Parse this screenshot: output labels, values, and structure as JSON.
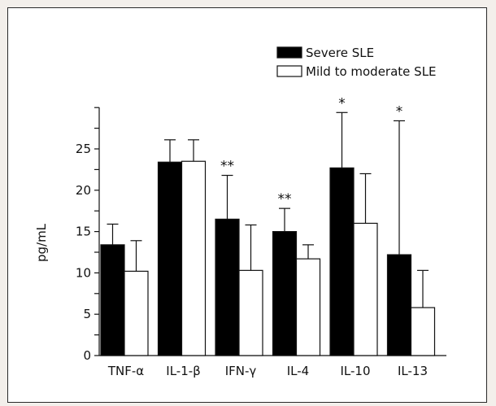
{
  "chart_data": {
    "type": "bar",
    "categories": [
      "TNF-α",
      "IL-1-β",
      "IFN-γ",
      "IL-4",
      "IL-10",
      "IL-13"
    ],
    "series": [
      {
        "name": "Severe SLE",
        "color": "#000000",
        "values": [
          13.4,
          23.4,
          16.5,
          15.0,
          22.7,
          12.2
        ],
        "error_upper": [
          15.9,
          26.1,
          21.8,
          17.8,
          29.4,
          28.4
        ]
      },
      {
        "name": "Mild to moderate SLE",
        "color": "#ffffff",
        "values": [
          10.2,
          23.5,
          10.3,
          11.7,
          16.0,
          5.8
        ],
        "error_upper": [
          13.9,
          26.1,
          15.8,
          13.4,
          22.0,
          10.3
        ]
      }
    ],
    "annotations": [
      "",
      "",
      "**",
      "**",
      "*",
      "*"
    ],
    "title": "",
    "xlabel": "",
    "ylabel": "pg/mL",
    "ylim": [
      0,
      30
    ],
    "yticks": [
      0,
      5,
      10,
      15,
      20,
      25
    ],
    "legend_position": "top-right",
    "grid": false
  }
}
